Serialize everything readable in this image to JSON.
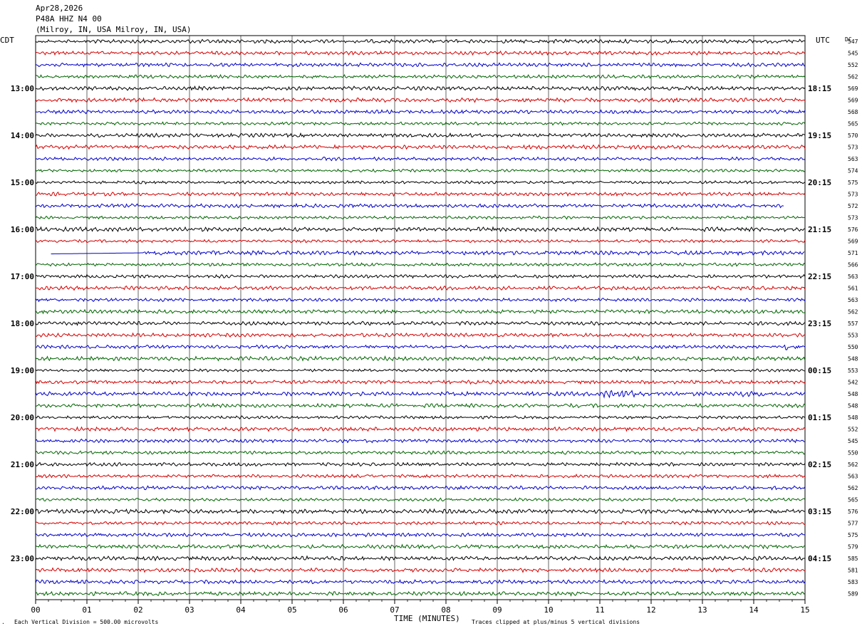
{
  "header": {
    "date": "Apr28,2026",
    "station": "P48A HHZ N4 00",
    "location": "(Milroy, IN, USA Milroy, IN, USA)"
  },
  "labels": {
    "left_tz": "CDT",
    "right_tz": "UTC",
    "dc_header": "DC",
    "xlabel": "TIME (MINUTES)",
    "scale_note": "Each Vertical Division =  500.00 microvolts",
    "clip_note": "Traces clipped at plus/minus 5 vertical divisions",
    "corner_mark": "."
  },
  "colors": {
    "cycle": [
      "#000000",
      "#d40000",
      "#0000c8",
      "#006400"
    ],
    "grid": "#000000"
  },
  "chart_data": {
    "type": "line",
    "title": "",
    "x_ticks": [
      "00",
      "01",
      "02",
      "03",
      "04",
      "05",
      "06",
      "07",
      "08",
      "09",
      "10",
      "11",
      "12",
      "13",
      "14",
      "15"
    ],
    "xlim": [
      0,
      15
    ],
    "trace_count": 48,
    "minutes_per_trace": 15,
    "left_hour_labels": [
      "13:00",
      "14:00",
      "15:00",
      "16:00",
      "17:00",
      "18:00",
      "19:00",
      "20:00",
      "21:00",
      "22:00",
      "23:00"
    ],
    "right_hour_labels": [
      "18:15",
      "19:15",
      "20:15",
      "21:15",
      "22:15",
      "23:15",
      "00:15",
      "01:15",
      "02:15",
      "03:15",
      "04:15"
    ],
    "dc_values": [
      547,
      545,
      552,
      562,
      569,
      569,
      568,
      565,
      570,
      573,
      563,
      574,
      575,
      573,
      572,
      573,
      576,
      569,
      571,
      566,
      563,
      561,
      563,
      562,
      557,
      553,
      550,
      548,
      553,
      542,
      548,
      548,
      548,
      552,
      545,
      550,
      562,
      563,
      562,
      565,
      576,
      577,
      575,
      579,
      585,
      581,
      583,
      589
    ],
    "events": [
      {
        "trace": 18,
        "note": "data gap, flat segment",
        "minute_start": 0.3,
        "minute_end": 2.1
      },
      {
        "trace": 14,
        "note": "trace ends early",
        "minute_end": 14.6
      }
    ]
  }
}
